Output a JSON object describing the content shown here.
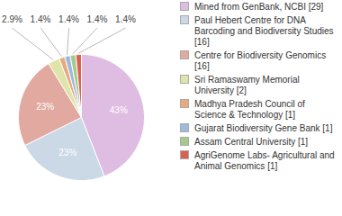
{
  "chart_data": {
    "type": "pie",
    "categories": [
      "Mined from GenBank, NCBI [29]",
      "Paul Hebert Centre for DNA Barcoding and Biodiversity Studies [16]",
      "Centre for Biodiversity Genomics [16]",
      "Sri Ramaswamy Memorial University [2]",
      "Madhya Pradesh Council of Science & Technology [1]",
      "Gujarat Biodiversity Gene Bank [1]",
      "Assam Central University [1]",
      "AgriGenome Labs- Agricultural and Animal Genomics [1]"
    ],
    "values": [
      43,
      23,
      23,
      2.9,
      1.4,
      1.4,
      1.4,
      1.4
    ],
    "value_labels": [
      "43%",
      "23%",
      "23%",
      "2.9%",
      "1.4%",
      "1.4%",
      "1.4%",
      "1.4%"
    ],
    "colors": [
      "#dfbde2",
      "#cbd8e6",
      "#e1a99f",
      "#dfe4ab",
      "#e8aa7c",
      "#9fbadd",
      "#a6c98c",
      "#d9614f"
    ],
    "data_labels": true,
    "legend": "right"
  }
}
